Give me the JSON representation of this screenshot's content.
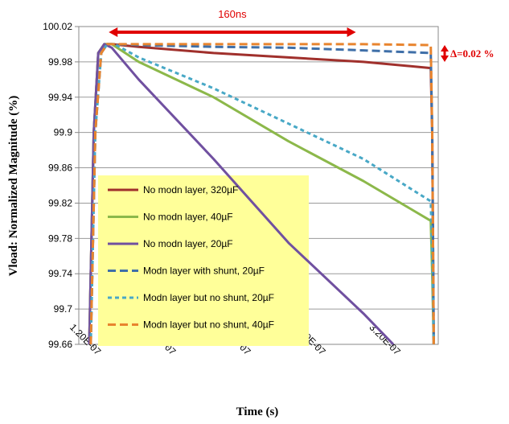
{
  "chart_data": {
    "type": "line",
    "xlabel": "Time (s)",
    "ylabel": "Vload: Normalized Magnitude (%)",
    "xlim": [
      1.1e-07,
      3.5e-07
    ],
    "ylim": [
      99.66,
      100.02
    ],
    "x_ticks": [
      {
        "value": 1.2e-07,
        "label": "1.20E-07"
      },
      {
        "value": 1.7e-07,
        "label": "1.70E-07"
      },
      {
        "value": 2.2e-07,
        "label": "2.20E-07"
      },
      {
        "value": 2.7e-07,
        "label": "2.70E-07"
      },
      {
        "value": 3.2e-07,
        "label": "3.20E-07"
      }
    ],
    "y_ticks": [
      {
        "value": 100.02,
        "label": "100.02"
      },
      {
        "value": 99.98,
        "label": "99.98"
      },
      {
        "value": 99.94,
        "label": "99.94"
      },
      {
        "value": 99.9,
        "label": "99.9"
      },
      {
        "value": 99.86,
        "label": "99.86"
      },
      {
        "value": 99.82,
        "label": "99.82"
      },
      {
        "value": 99.78,
        "label": "99.78"
      },
      {
        "value": 99.74,
        "label": "99.74"
      },
      {
        "value": 99.7,
        "label": "99.7"
      },
      {
        "value": 99.66,
        "label": "99.66"
      }
    ],
    "grid": "horizontal",
    "legend_position": "lower-left",
    "legend_background": "#ffff99",
    "series": [
      {
        "name": "No modn layer, 320µF",
        "color": "#a0302c",
        "dash": "solid",
        "x": [
          1.17e-07,
          1.2e-07,
          1.23e-07,
          1.27e-07,
          1.32e-07,
          1.5e-07,
          2e-07,
          2.5e-07,
          3e-07,
          3.45e-07,
          3.46e-07,
          3.47e-07
        ],
        "y": [
          99.66,
          99.9,
          99.99,
          100.0,
          100.0,
          99.997,
          99.99,
          99.985,
          99.98,
          99.973,
          99.9,
          99.66
        ]
      },
      {
        "name": "No modn layer, 40µF",
        "color": "#8cb84a",
        "dash": "solid",
        "x": [
          1.17e-07,
          1.2e-07,
          1.23e-07,
          1.27e-07,
          1.32e-07,
          1.5e-07,
          2e-07,
          2.5e-07,
          3e-07,
          3.45e-07,
          3.46e-07,
          3.47e-07
        ],
        "y": [
          99.66,
          99.9,
          99.99,
          100.0,
          100.0,
          99.98,
          99.94,
          99.89,
          99.845,
          99.8,
          99.74,
          99.66
        ]
      },
      {
        "name": "No modn layer, 20µF",
        "color": "#7050a0",
        "dash": "solid",
        "x": [
          1.17e-07,
          1.2e-07,
          1.23e-07,
          1.27e-07,
          1.32e-07,
          1.5e-07,
          2e-07,
          2.5e-07,
          3e-07,
          3.2e-07
        ],
        "y": [
          99.66,
          99.9,
          99.99,
          100.0,
          99.996,
          99.96,
          99.87,
          99.775,
          99.695,
          99.66
        ]
      },
      {
        "name": "Modn layer with shunt, 20µF",
        "color": "#3f6fa8",
        "dash": "long",
        "x": [
          1.18e-07,
          1.21e-07,
          1.25e-07,
          1.29e-07,
          1.34e-07,
          1.5e-07,
          2e-07,
          2.5e-07,
          3e-07,
          3.45e-07,
          3.46e-07,
          3.47e-07
        ],
        "y": [
          99.66,
          99.9,
          99.99,
          100.0,
          100.0,
          99.999,
          99.997,
          99.996,
          99.993,
          99.99,
          99.9,
          99.66
        ]
      },
      {
        "name": "Modn layer but no shunt, 20µF",
        "color": "#48a8c6",
        "dash": "short",
        "x": [
          1.18e-07,
          1.21e-07,
          1.25e-07,
          1.29e-07,
          1.34e-07,
          1.5e-07,
          2e-07,
          2.5e-07,
          3e-07,
          3.45e-07,
          3.46e-07,
          3.47e-07
        ],
        "y": [
          99.66,
          99.9,
          99.99,
          100.0,
          100.0,
          99.985,
          99.95,
          99.91,
          99.87,
          99.822,
          99.76,
          99.66
        ]
      },
      {
        "name": "Modn layer but no shunt, 40µF",
        "color": "#e8842e",
        "dash": "long",
        "x": [
          1.18e-07,
          1.21e-07,
          1.25e-07,
          1.29e-07,
          1.34e-07,
          1.5e-07,
          2e-07,
          2.5e-07,
          3e-07,
          3.45e-07,
          3.46e-07,
          3.47e-07
        ],
        "y": [
          99.66,
          99.9,
          99.99,
          100.0,
          100.0,
          100.0,
          100.0,
          100.0,
          100.0,
          99.999,
          99.9,
          99.66
        ]
      }
    ],
    "annotations": [
      {
        "text": "160ns",
        "color": "#e00000",
        "kind": "double-arrow",
        "x_from": 1.3e-07,
        "x_to": 2.95e-07,
        "y": 100.018
      },
      {
        "text": "Δ=0.02 %",
        "color": "#e00000",
        "kind": "vertical-double-arrow",
        "y_from": 99.98,
        "y_to": 100.0
      }
    ]
  }
}
